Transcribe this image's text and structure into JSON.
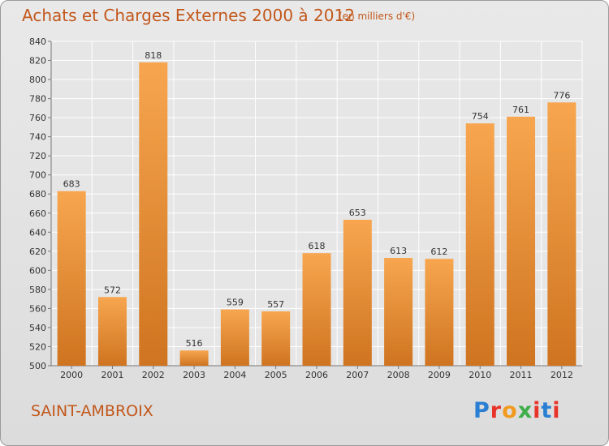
{
  "header": {
    "title": "Achats et Charges Externes 2000 à 2012",
    "subtitle": "(en milliers d'€)"
  },
  "footer": {
    "commune": "SAINT-AMBROIX",
    "logo": "Proxiti"
  },
  "colors": {
    "bar_top": "#f7a64f",
    "bar_bottom": "#cf7420",
    "title": "#c2571a",
    "grid": "#ffffff"
  },
  "chart_data": {
    "type": "bar",
    "title": "Achats et Charges Externes 2000 à 2012",
    "subtitle": "(en milliers d'€)",
    "categories": [
      "2000",
      "2001",
      "2002",
      "2003",
      "2004",
      "2005",
      "2006",
      "2007",
      "2008",
      "2009",
      "2010",
      "2011",
      "2012"
    ],
    "values": [
      683,
      572,
      818,
      516,
      559,
      557,
      618,
      653,
      613,
      612,
      754,
      761,
      776
    ],
    "data_labels": [
      "683",
      "572",
      "818",
      "516",
      "559",
      "557",
      "618",
      "653",
      "613",
      "612",
      "754",
      "761",
      "776"
    ],
    "ylim": [
      500,
      840
    ],
    "yticks": [
      500,
      520,
      540,
      560,
      580,
      600,
      620,
      640,
      660,
      680,
      700,
      720,
      740,
      760,
      780,
      800,
      820,
      840
    ],
    "grid": true,
    "legend": false
  }
}
